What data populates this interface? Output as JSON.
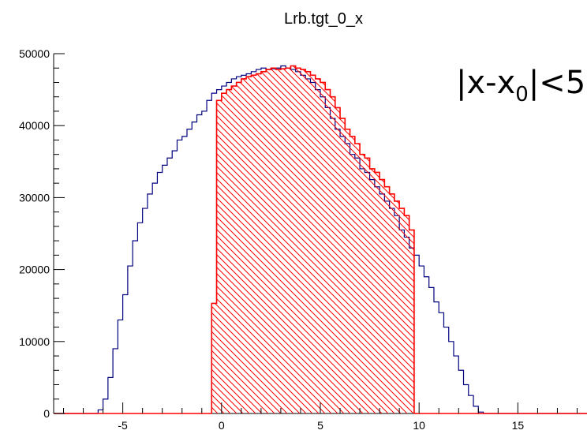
{
  "chart_data": {
    "type": "bar",
    "title": "Lrb.tgt_0_x",
    "xlabel": "",
    "ylabel": "",
    "xlim": [
      -8.5,
      18.5
    ],
    "ylim": [
      0,
      50000
    ],
    "bin_width": 0.25,
    "x_tick_labels": [
      "-5",
      "0",
      "5",
      "10",
      "15"
    ],
    "x_ticks": [
      -5,
      0,
      5,
      10,
      15
    ],
    "y_tick_labels": [
      "0",
      "10000",
      "20000",
      "30000",
      "40000",
      "50000"
    ],
    "y_ticks": [
      0,
      10000,
      20000,
      30000,
      40000,
      50000
    ],
    "annotation": {
      "main": "|x-x",
      "sub": "0",
      "tail": "|<5"
    },
    "series": [
      {
        "color": "#00007f",
        "fill": "none",
        "x_start": -6.25,
        "values": [
          500,
          2000,
          5000,
          9000,
          13000,
          16500,
          20500,
          24000,
          26500,
          28500,
          30500,
          32000,
          33500,
          34500,
          35500,
          36500,
          38000,
          38500,
          39500,
          40500,
          41500,
          42000,
          43500,
          44500,
          45000,
          45500,
          46000,
          46500,
          46800,
          47000,
          47200,
          47500,
          47800,
          48000,
          47800,
          47900,
          48000,
          48300,
          48000,
          47800,
          47500,
          47000,
          46500,
          46000,
          45000,
          44000,
          42500,
          41000,
          39500,
          38500,
          37500,
          36000,
          35500,
          34000,
          33500,
          32500,
          31500,
          30500,
          29500,
          28500,
          27500,
          25500,
          24500,
          23000,
          22000,
          20500,
          19000,
          17500,
          15500,
          14000,
          12000,
          10000,
          8000,
          6000,
          4000,
          2500,
          1000,
          200
        ]
      },
      {
        "color": "#ff0000",
        "fill": "hatched",
        "x_start": -0.5,
        "values": [
          15300,
          43500,
          44500,
          45000,
          45500,
          46000,
          46500,
          46800,
          47000,
          47200,
          47500,
          47800,
          48000,
          47800,
          47900,
          48000,
          48300,
          48000,
          47800,
          47500,
          47000,
          46500,
          46000,
          45000,
          44000,
          42500,
          41000,
          39500,
          38500,
          37500,
          36000,
          35500,
          34000,
          33500,
          32500,
          31500,
          30500,
          29500,
          28500,
          27500,
          25500
        ]
      }
    ]
  }
}
